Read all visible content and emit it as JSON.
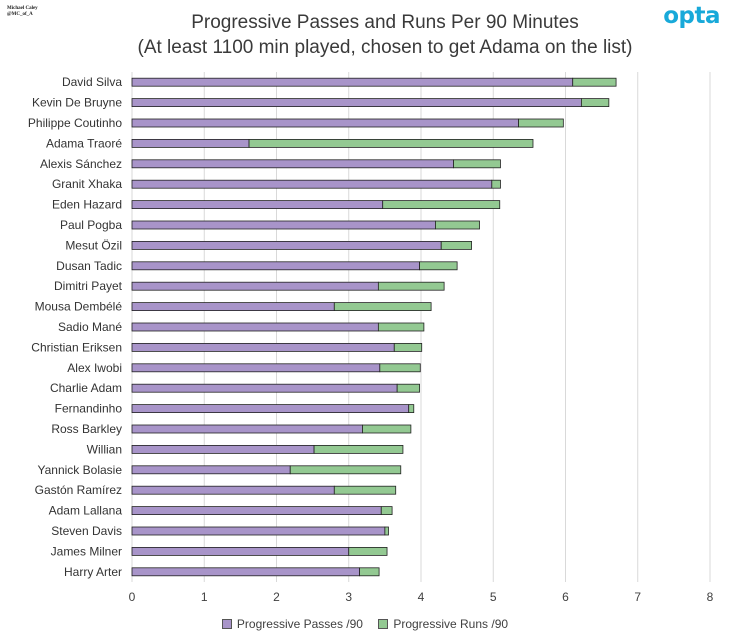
{
  "header": {
    "credit_line1": "Michael Caley",
    "credit_line2": "@MC_of_A",
    "logo_text": "opta",
    "logo_color": "#18a9d9"
  },
  "colors": {
    "passes": "#a894c9",
    "runs": "#93c992",
    "grid": "#d9d9d9",
    "outline": "#222222"
  },
  "chart_data": {
    "type": "bar",
    "orientation": "horizontal",
    "stacked": true,
    "title": "Progressive Passes and Runs Per 90 Minutes",
    "subtitle": "(At least 1100 min played, chosen to get Adama on the list)",
    "xlim": [
      0,
      8
    ],
    "x_ticks": [
      0,
      1,
      2,
      3,
      4,
      5,
      6,
      7,
      8
    ],
    "grid": "vertical",
    "legend_position": "bottom",
    "categories": [
      "David Silva",
      "Kevin De Bruyne",
      "Philippe Coutinho",
      "Adama Traoré",
      "Alexis Sánchez",
      "Granit Xhaka",
      "Eden Hazard",
      "Paul Pogba",
      "Mesut Özil",
      "Dusan Tadic",
      "Dimitri Payet",
      "Mousa Dembélé",
      "Sadio Mané",
      "Christian Eriksen",
      "Alex Iwobi",
      "Charlie Adam",
      "Fernandinho",
      "Ross Barkley",
      "Willian",
      "Yannick Bolasie",
      "Gastón Ramírez",
      "Adam Lallana",
      "Steven Davis",
      "James Milner",
      "Harry Arter"
    ],
    "series": [
      {
        "name": "Progressive Passes /90",
        "values": [
          6.1,
          6.22,
          5.35,
          1.62,
          4.45,
          4.98,
          3.47,
          4.2,
          4.28,
          3.98,
          3.41,
          2.8,
          3.41,
          3.63,
          3.43,
          3.67,
          3.83,
          3.19,
          2.52,
          2.19,
          2.8,
          3.45,
          3.5,
          3.0,
          3.15
        ]
      },
      {
        "name": "Progressive Runs /90",
        "values": [
          0.6,
          0.38,
          0.62,
          3.93,
          0.65,
          0.12,
          1.62,
          0.61,
          0.42,
          0.52,
          0.91,
          1.34,
          0.63,
          0.38,
          0.56,
          0.31,
          0.07,
          0.67,
          1.23,
          1.53,
          0.85,
          0.15,
          0.05,
          0.53,
          0.27
        ]
      }
    ]
  }
}
